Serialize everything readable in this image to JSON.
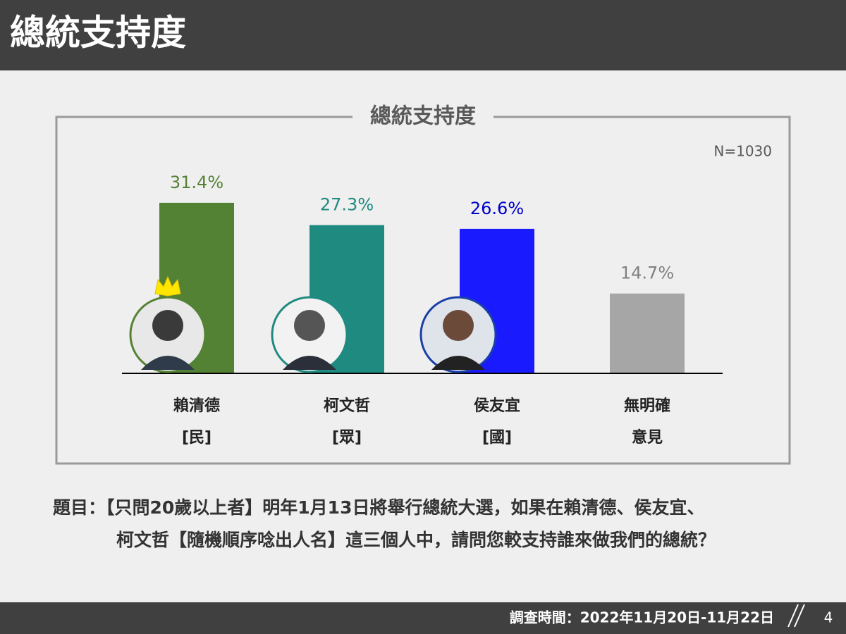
{
  "header": {
    "title": "總統支持度"
  },
  "chart_data": {
    "type": "bar",
    "title": "總統支持度",
    "note": "N=1030",
    "categories": [
      [
        "賴清德",
        "[民]"
      ],
      [
        "柯文哲",
        "[眾]"
      ],
      [
        "侯友宜",
        "[國]"
      ],
      [
        "無明確",
        "意見"
      ]
    ],
    "values": [
      31.4,
      27.3,
      26.6,
      14.7
    ],
    "value_labels": [
      "31.4%",
      "27.3%",
      "26.6%",
      "14.7%"
    ],
    "colors": [
      "#548235",
      "#1f8a80",
      "#1a1aff",
      "#a6a6a6"
    ],
    "label_colors": [
      "#548235",
      "#1f8a80",
      "#0000cc",
      "#808080"
    ],
    "ylim": [
      0,
      45
    ]
  },
  "question": [
    "題目：【只問20歲以上者】明年1月13日將舉行總統大選，如果在賴清德、侯友宜、",
    "柯文哲【隨機順序唸出人名】這三個人中，請問您較支持誰來做我們的總統？"
  ],
  "footer": {
    "survey_date": "調查時間：2022年11月20日-11月22日",
    "page": "4"
  }
}
